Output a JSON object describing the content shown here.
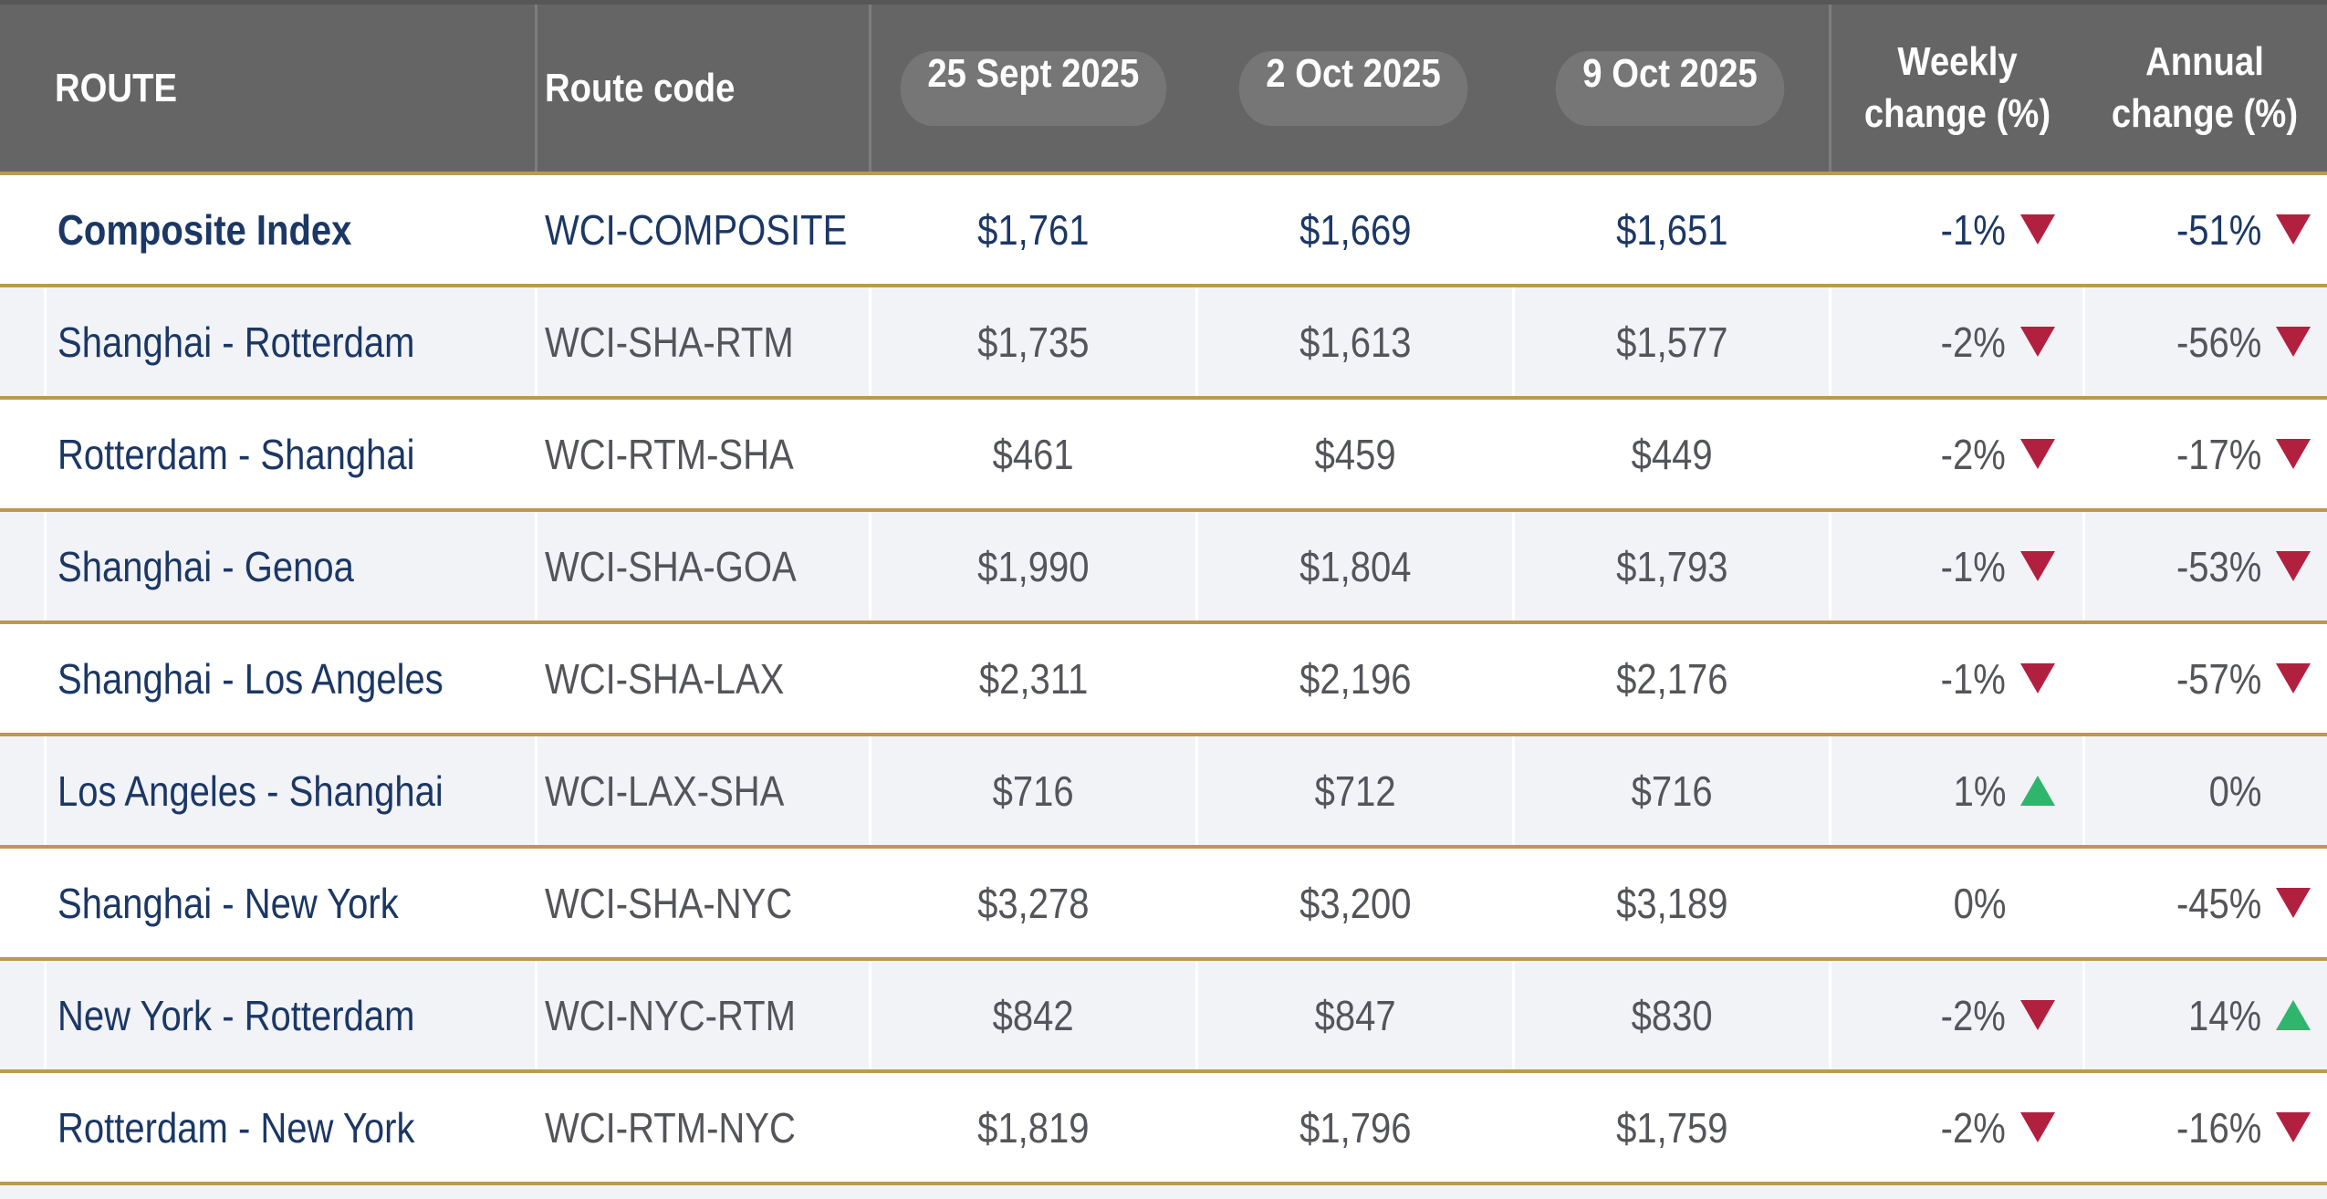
{
  "colors": {
    "gold": "#bc9850",
    "navy": "#1b3765",
    "gray": "#54555a",
    "red": "#b22040",
    "green": "#2fb56c",
    "header-bg": "#656565",
    "pill-bg": "#767676",
    "row-alt-bg": "#f2f3f7"
  },
  "chart_data": {
    "type": "table",
    "columns": [
      "ROUTE",
      "Route code",
      "25 Sept 2025",
      "2 Oct 2025",
      "9 Oct 2025",
      "Weekly change (%)",
      "Annual change (%)"
    ],
    "rows": [
      {
        "route": "Composite Index",
        "code": "WCI-COMPOSITE",
        "prices": [
          "$1,761",
          "$1,669",
          "$1,651"
        ],
        "weekly": {
          "value": "-1%",
          "direction": "down"
        },
        "annual": {
          "value": "-51%",
          "direction": "down"
        },
        "emphasis": true
      },
      {
        "route": "Shanghai - Rotterdam",
        "code": "WCI-SHA-RTM",
        "prices": [
          "$1,735",
          "$1,613",
          "$1,577"
        ],
        "weekly": {
          "value": "-2%",
          "direction": "down"
        },
        "annual": {
          "value": "-56%",
          "direction": "down"
        },
        "emphasis": false
      },
      {
        "route": "Rotterdam - Shanghai",
        "code": "WCI-RTM-SHA",
        "prices": [
          "$461",
          "$459",
          "$449"
        ],
        "weekly": {
          "value": "-2%",
          "direction": "down"
        },
        "annual": {
          "value": "-17%",
          "direction": "down"
        },
        "emphasis": false
      },
      {
        "route": "Shanghai - Genoa",
        "code": "WCI-SHA-GOA",
        "prices": [
          "$1,990",
          "$1,804",
          "$1,793"
        ],
        "weekly": {
          "value": "-1%",
          "direction": "down"
        },
        "annual": {
          "value": "-53%",
          "direction": "down"
        },
        "emphasis": false
      },
      {
        "route": "Shanghai - Los Angeles",
        "code": "WCI-SHA-LAX",
        "prices": [
          "$2,311",
          "$2,196",
          "$2,176"
        ],
        "weekly": {
          "value": "-1%",
          "direction": "down"
        },
        "annual": {
          "value": "-57%",
          "direction": "down"
        },
        "emphasis": false
      },
      {
        "route": "Los Angeles - Shanghai",
        "code": "WCI-LAX-SHA",
        "prices": [
          "$716",
          "$712",
          "$716"
        ],
        "weekly": {
          "value": "1%",
          "direction": "up"
        },
        "annual": {
          "value": "0%",
          "direction": "none"
        },
        "emphasis": false
      },
      {
        "route": "Shanghai - New York",
        "code": "WCI-SHA-NYC",
        "prices": [
          "$3,278",
          "$3,200",
          "$3,189"
        ],
        "weekly": {
          "value": "0%",
          "direction": "none"
        },
        "annual": {
          "value": "-45%",
          "direction": "down"
        },
        "emphasis": false
      },
      {
        "route": "New York - Rotterdam",
        "code": "WCI-NYC-RTM",
        "prices": [
          "$842",
          "$847",
          "$830"
        ],
        "weekly": {
          "value": "-2%",
          "direction": "down"
        },
        "annual": {
          "value": "14%",
          "direction": "up"
        },
        "emphasis": false
      },
      {
        "route": "Rotterdam - New York",
        "code": "WCI-RTM-NYC",
        "prices": [
          "$1,819",
          "$1,796",
          "$1,759"
        ],
        "weekly": {
          "value": "-2%",
          "direction": "down"
        },
        "annual": {
          "value": "-16%",
          "direction": "down"
        },
        "emphasis": false
      }
    ]
  }
}
